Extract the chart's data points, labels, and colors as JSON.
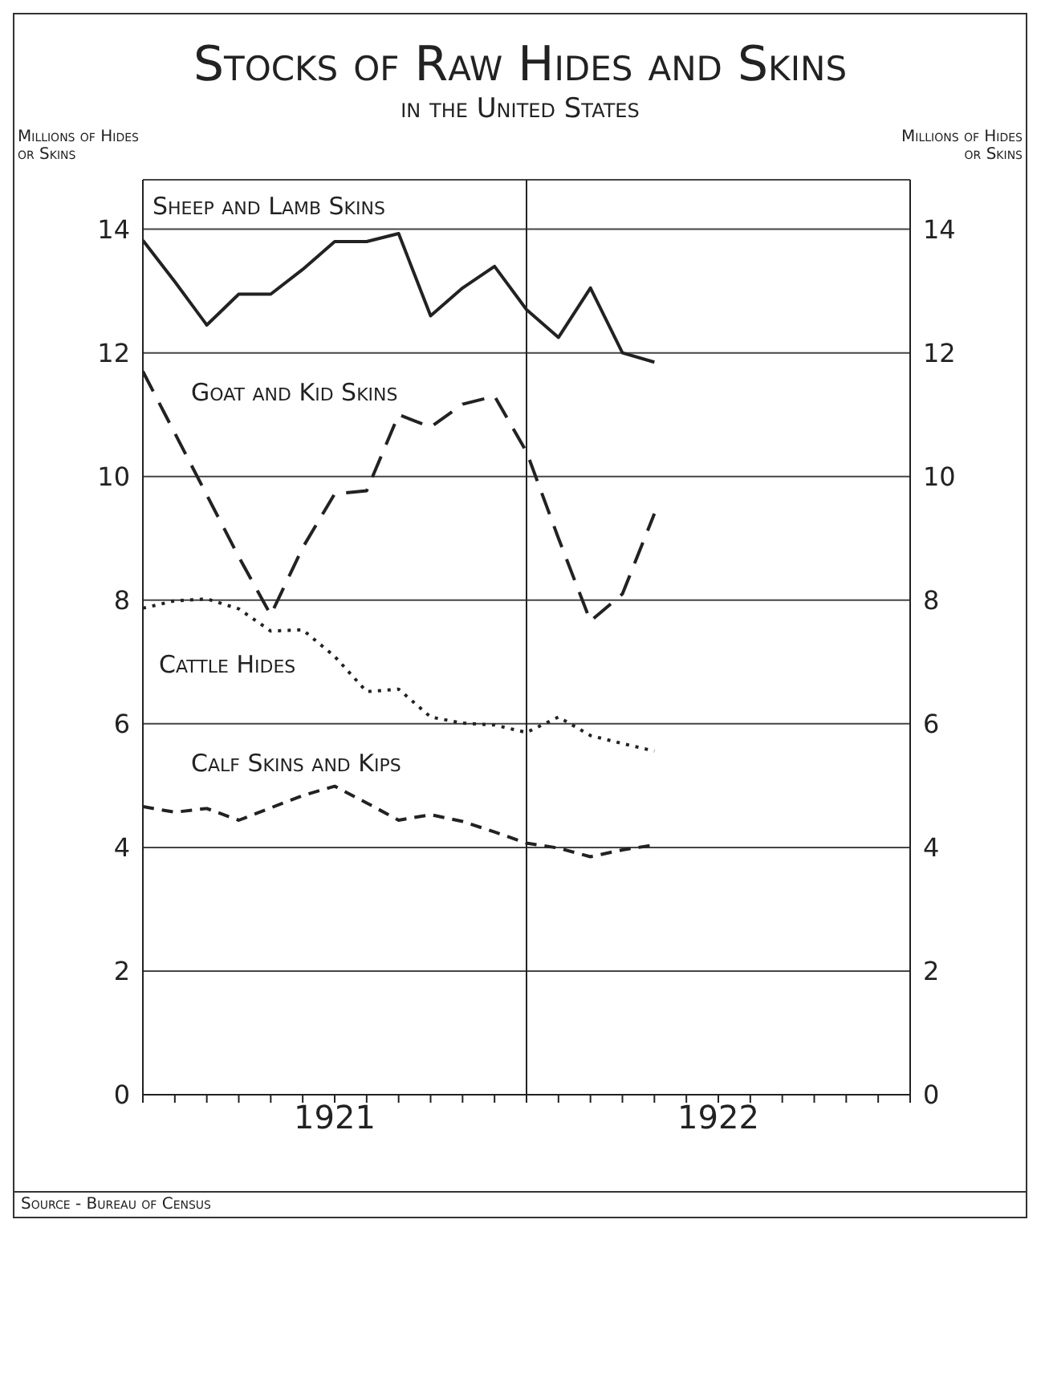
{
  "chart_data": {
    "type": "line",
    "title": "Stocks of Raw Hides and Skins",
    "subtitle": "in the United States",
    "ylabel": "Millions of Hides or Skins",
    "y2label": "Millions of Hides or Skins",
    "x": [
      "1921-01",
      "1921-02",
      "1921-03",
      "1921-04",
      "1921-05",
      "1921-06",
      "1921-07",
      "1921-08",
      "1921-09",
      "1921-10",
      "1921-11",
      "1921-12",
      "1922-01",
      "1922-02",
      "1922-03",
      "1922-04",
      "1922-05"
    ],
    "series": [
      {
        "name": "Sheep and Lamb Skins",
        "color": "#222222",
        "line_style": "solid",
        "values": [
          13.82,
          13.15,
          12.45,
          12.95,
          12.95,
          13.35,
          13.8,
          13.8,
          13.93,
          12.6,
          13.05,
          13.4,
          12.7,
          12.25,
          13.05,
          12.0,
          11.85
        ]
      },
      {
        "name": "Goat and Kid Skins",
        "color": "#222222",
        "line_style": "longdash",
        "values": [
          11.7,
          10.7,
          9.7,
          8.7,
          7.76,
          8.85,
          9.72,
          9.77,
          11.0,
          10.8,
          11.17,
          11.3,
          10.4,
          9.0,
          7.66,
          8.1,
          9.4
        ]
      },
      {
        "name": "Cattle Hides",
        "color": "#222222",
        "line_style": "dotted",
        "values": [
          7.87,
          7.99,
          8.02,
          7.86,
          7.5,
          7.52,
          7.09,
          6.52,
          6.56,
          6.11,
          6.01,
          5.98,
          5.86,
          6.11,
          5.81,
          5.68,
          5.56
        ]
      },
      {
        "name": "Calf Skins and Kips",
        "color": "#222222",
        "line_style": "dashed",
        "values": [
          4.66,
          4.57,
          4.63,
          4.44,
          4.64,
          4.84,
          4.99,
          4.72,
          4.44,
          4.53,
          4.42,
          4.25,
          4.07,
          3.99,
          3.85,
          3.96,
          4.04
        ]
      }
    ],
    "xlim": [
      "1921-01",
      "1923-01"
    ],
    "xticks": [
      {
        "value": "1921-01",
        "label": null
      },
      {
        "value": "1921-02",
        "label": null
      },
      {
        "value": "1921-03",
        "label": null
      },
      {
        "value": "1921-04",
        "label": null
      },
      {
        "value": "1921-05",
        "label": null
      },
      {
        "value": "1921-06",
        "label": null
      },
      {
        "value": "1921-07",
        "label": "1921"
      },
      {
        "value": "1921-08",
        "label": null
      },
      {
        "value": "1921-09",
        "label": null
      },
      {
        "value": "1921-10",
        "label": null
      },
      {
        "value": "1921-11",
        "label": null
      },
      {
        "value": "1921-12",
        "label": null
      },
      {
        "value": "1922-01",
        "label": null
      },
      {
        "value": "1922-02",
        "label": null
      },
      {
        "value": "1922-03",
        "label": null
      },
      {
        "value": "1922-04",
        "label": null
      },
      {
        "value": "1922-05",
        "label": null
      },
      {
        "value": "1922-06",
        "label": null
      },
      {
        "value": "1922-07",
        "label": "1922"
      },
      {
        "value": "1922-08",
        "label": null
      },
      {
        "value": "1922-09",
        "label": null
      },
      {
        "value": "1922-10",
        "label": null
      },
      {
        "value": "1922-11",
        "label": null
      },
      {
        "value": "1922-12",
        "label": null
      },
      {
        "value": "1923-01",
        "label": null
      }
    ],
    "ylim": [
      0,
      14.8
    ],
    "yticks": [
      0,
      2,
      4,
      6,
      8,
      10,
      12,
      14
    ],
    "y2lim": [
      0,
      14.8
    ],
    "y2ticks": [
      0,
      2,
      4,
      6,
      8,
      10,
      12,
      14
    ],
    "grid": "y",
    "marker": "none",
    "ref_lines": [
      {
        "axis": "x",
        "value": "1922-01"
      }
    ],
    "annotations": [
      "Source - Bureau of Census"
    ]
  }
}
